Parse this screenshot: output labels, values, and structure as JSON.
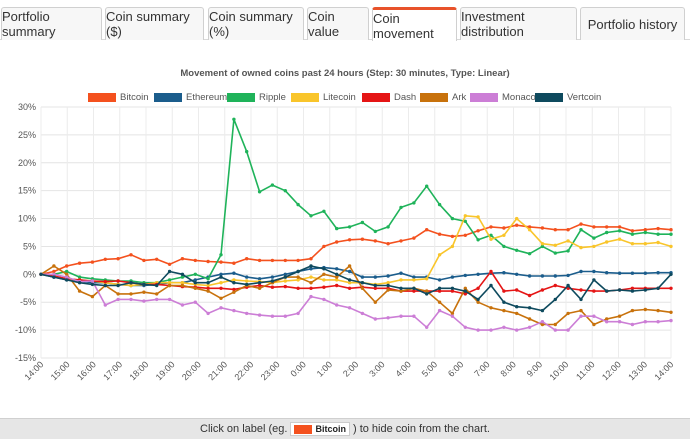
{
  "tabs": [
    {
      "label": "Portfolio summary"
    },
    {
      "label": "Coin summary ($)"
    },
    {
      "label": "Coin summary (%)"
    },
    {
      "label": "Coin value"
    },
    {
      "label": "Coin movement",
      "active": true
    },
    {
      "label": "Investment distribution"
    },
    {
      "label": "Portfolio history"
    }
  ],
  "accent_color": "#e8522a",
  "footer": {
    "text_before": "Click on label (eg.",
    "example_label": "Bitcoin",
    "text_after": ") to hide coin from the chart."
  },
  "chart_data": {
    "type": "line",
    "title": "Movement of owned coins past 24 hours (Step: 30 minutes, Type: Linear)",
    "xlabel": "",
    "ylabel": "",
    "y_unit": "%",
    "ylim": [
      -15,
      30
    ],
    "y_ticks": [
      30,
      25,
      20,
      15,
      10,
      5,
      0,
      -5,
      -10,
      -15
    ],
    "x_tick_labels": [
      "14:00",
      "15:00",
      "16:00",
      "17:00",
      "18:00",
      "19:00",
      "20:00",
      "21:00",
      "22:00",
      "23:00",
      "0:00",
      "1:00",
      "2:00",
      "3:00",
      "4:00",
      "5:00",
      "6:00",
      "7:00",
      "8:00",
      "9:00",
      "10:00",
      "11:00",
      "12:00",
      "13:00",
      "14:00"
    ],
    "grid": true,
    "legend_position": "top-center",
    "series": [
      {
        "name": "Bitcoin",
        "color": "#f4511e",
        "values": [
          0,
          0.5,
          1.5,
          2,
          2.2,
          2.7,
          2.8,
          3.5,
          2.5,
          2.7,
          1.8,
          2.8,
          2.5,
          2.3,
          2.2,
          2,
          2.8,
          2.5,
          2.5,
          2.5,
          2.5,
          2.8,
          5,
          5.8,
          6.2,
          6.3,
          6,
          5.5,
          6,
          6.5,
          8,
          7.2,
          6.8,
          7,
          7.8,
          8.5,
          8.3,
          8.8,
          8.5,
          8.3,
          8,
          8,
          9,
          8.5,
          8.5,
          8.5,
          7.8,
          8,
          8.2,
          8
        ]
      },
      {
        "name": "Ethereum",
        "color": "#1b5d8c",
        "values": [
          0,
          -0.5,
          -1,
          -1.2,
          -1.5,
          -1.5,
          -1.8,
          -2,
          -2,
          -1.8,
          -1.5,
          -1.5,
          -1,
          -0.5,
          0,
          0.2,
          -0.5,
          -0.8,
          -0.5,
          0,
          0.5,
          1,
          1.2,
          1,
          0.5,
          -0.5,
          -0.5,
          -0.3,
          0.2,
          -0.5,
          -0.5,
          -1,
          -0.5,
          -0.2,
          0,
          0.2,
          0.3,
          0,
          -0.3,
          -0.3,
          -0.3,
          -0.2,
          0.5,
          0.5,
          0.3,
          0.2,
          0.2,
          0.2,
          0.3,
          0.3
        ]
      },
      {
        "name": "Ripple",
        "color": "#1fb35a",
        "values": [
          0,
          0,
          0.5,
          -0.5,
          -0.8,
          -1,
          -1.2,
          -1.2,
          -1.5,
          -1.5,
          -1,
          -0.5,
          0,
          -0.8,
          3.5,
          27.8,
          22,
          14.8,
          16,
          15,
          12.5,
          10.5,
          11.3,
          8.2,
          8.5,
          9.3,
          7.7,
          8.5,
          12,
          12.8,
          15.8,
          12.5,
          10,
          9.5,
          6.2,
          7,
          5,
          4.3,
          3.7,
          5,
          3.8,
          4.2,
          8,
          6.5,
          7.5,
          7.8,
          7.2,
          7.5,
          7.2,
          7.2
        ]
      },
      {
        "name": "Litecoin",
        "color": "#f9c52b",
        "values": [
          0,
          -0.3,
          -0.8,
          -1,
          -1.2,
          -1.5,
          -1.8,
          -2,
          -1.8,
          -1.5,
          -1.5,
          -1.5,
          -1.8,
          -2,
          -1.5,
          -1,
          -1.2,
          -1.3,
          -1.5,
          -1.2,
          -1,
          -0.5,
          -1,
          -1,
          -1.5,
          -1.5,
          -1.8,
          -1.5,
          -1,
          -1,
          -0.8,
          3.5,
          5,
          10.5,
          10.3,
          6.3,
          7,
          10,
          8,
          5.5,
          5.2,
          6,
          4.8,
          5,
          5.8,
          6.3,
          5.5,
          5.5,
          5.7,
          5
        ]
      },
      {
        "name": "Dash",
        "color": "#e51515",
        "values": [
          0,
          -0.3,
          -0.8,
          -1,
          -1.2,
          -1.3,
          -1.2,
          -1.5,
          -1.8,
          -1.8,
          -2,
          -2.2,
          -2.3,
          -2.5,
          -2.5,
          -2.7,
          -2.3,
          -2,
          -2.3,
          -2.2,
          -2.5,
          -2.5,
          -2.3,
          -2,
          -2.5,
          -2.3,
          -2.5,
          -2.5,
          -3,
          -3,
          -3,
          -3,
          -3,
          -3.5,
          -2.5,
          0.5,
          -3,
          -2.8,
          -3.8,
          -2.8,
          -2,
          -2.5,
          -2.8,
          -3,
          -3,
          -2.8,
          -2.5,
          -2.5,
          -2.5,
          -2.5
        ]
      },
      {
        "name": "Ark",
        "color": "#c8720c",
        "values": [
          0,
          1.5,
          0,
          -3,
          -4,
          -2,
          -3.5,
          -3.5,
          -3.2,
          -3.5,
          -2,
          -2,
          -2.5,
          -3,
          -4.3,
          -3.2,
          -2,
          -2.5,
          -1.5,
          -0.5,
          -0.5,
          -1.5,
          0,
          -0.5,
          1.5,
          -2.5,
          -5,
          -2.8,
          -3,
          -2.5,
          -3,
          -5,
          -7,
          -2.5,
          -5,
          -6,
          -6.5,
          -7,
          -8,
          -9,
          -9,
          -7,
          -6.5,
          -9,
          -8,
          -7.5,
          -6.5,
          -6.3,
          -6.5,
          -6.8
        ]
      },
      {
        "name": "Monaco",
        "color": "#cc7ed6",
        "values": [
          0,
          0,
          -0.5,
          -1.3,
          -1.2,
          -5.5,
          -4.5,
          -4.5,
          -4.8,
          -4.5,
          -4.5,
          -5.5,
          -5,
          -7,
          -6,
          -6.5,
          -7,
          -7.3,
          -7.5,
          -7.5,
          -7,
          -4,
          -4.5,
          -5.5,
          -6,
          -7,
          -8,
          -7.8,
          -7.5,
          -7.5,
          -9.5,
          -6.5,
          -7.5,
          -9.5,
          -10,
          -10,
          -9.5,
          -10,
          -9.5,
          -8.5,
          -10,
          -10,
          -7.5,
          -7.5,
          -8.5,
          -8.5,
          -9,
          -8.5,
          -8.5,
          -8.3
        ]
      },
      {
        "name": "Vertcoin",
        "color": "#0e4a5e",
        "values": [
          0,
          -0.5,
          -1,
          -1.5,
          -1.8,
          -2,
          -2,
          -1.5,
          -1.8,
          -2,
          0.5,
          0,
          -1.5,
          -1.5,
          -0.5,
          -1.5,
          -1.8,
          -1.5,
          -1.2,
          -0.5,
          0.5,
          1.5,
          1,
          0,
          -1,
          -1.5,
          -2,
          -2,
          -2.5,
          -2.5,
          -3.5,
          -2.5,
          -2.5,
          -3,
          -4.5,
          -2,
          -5,
          -5.8,
          -6,
          -6.5,
          -4.5,
          -2,
          -4.5,
          -1,
          -3,
          -2.8,
          -3,
          -2.8,
          -2.5,
          0
        ]
      }
    ]
  }
}
